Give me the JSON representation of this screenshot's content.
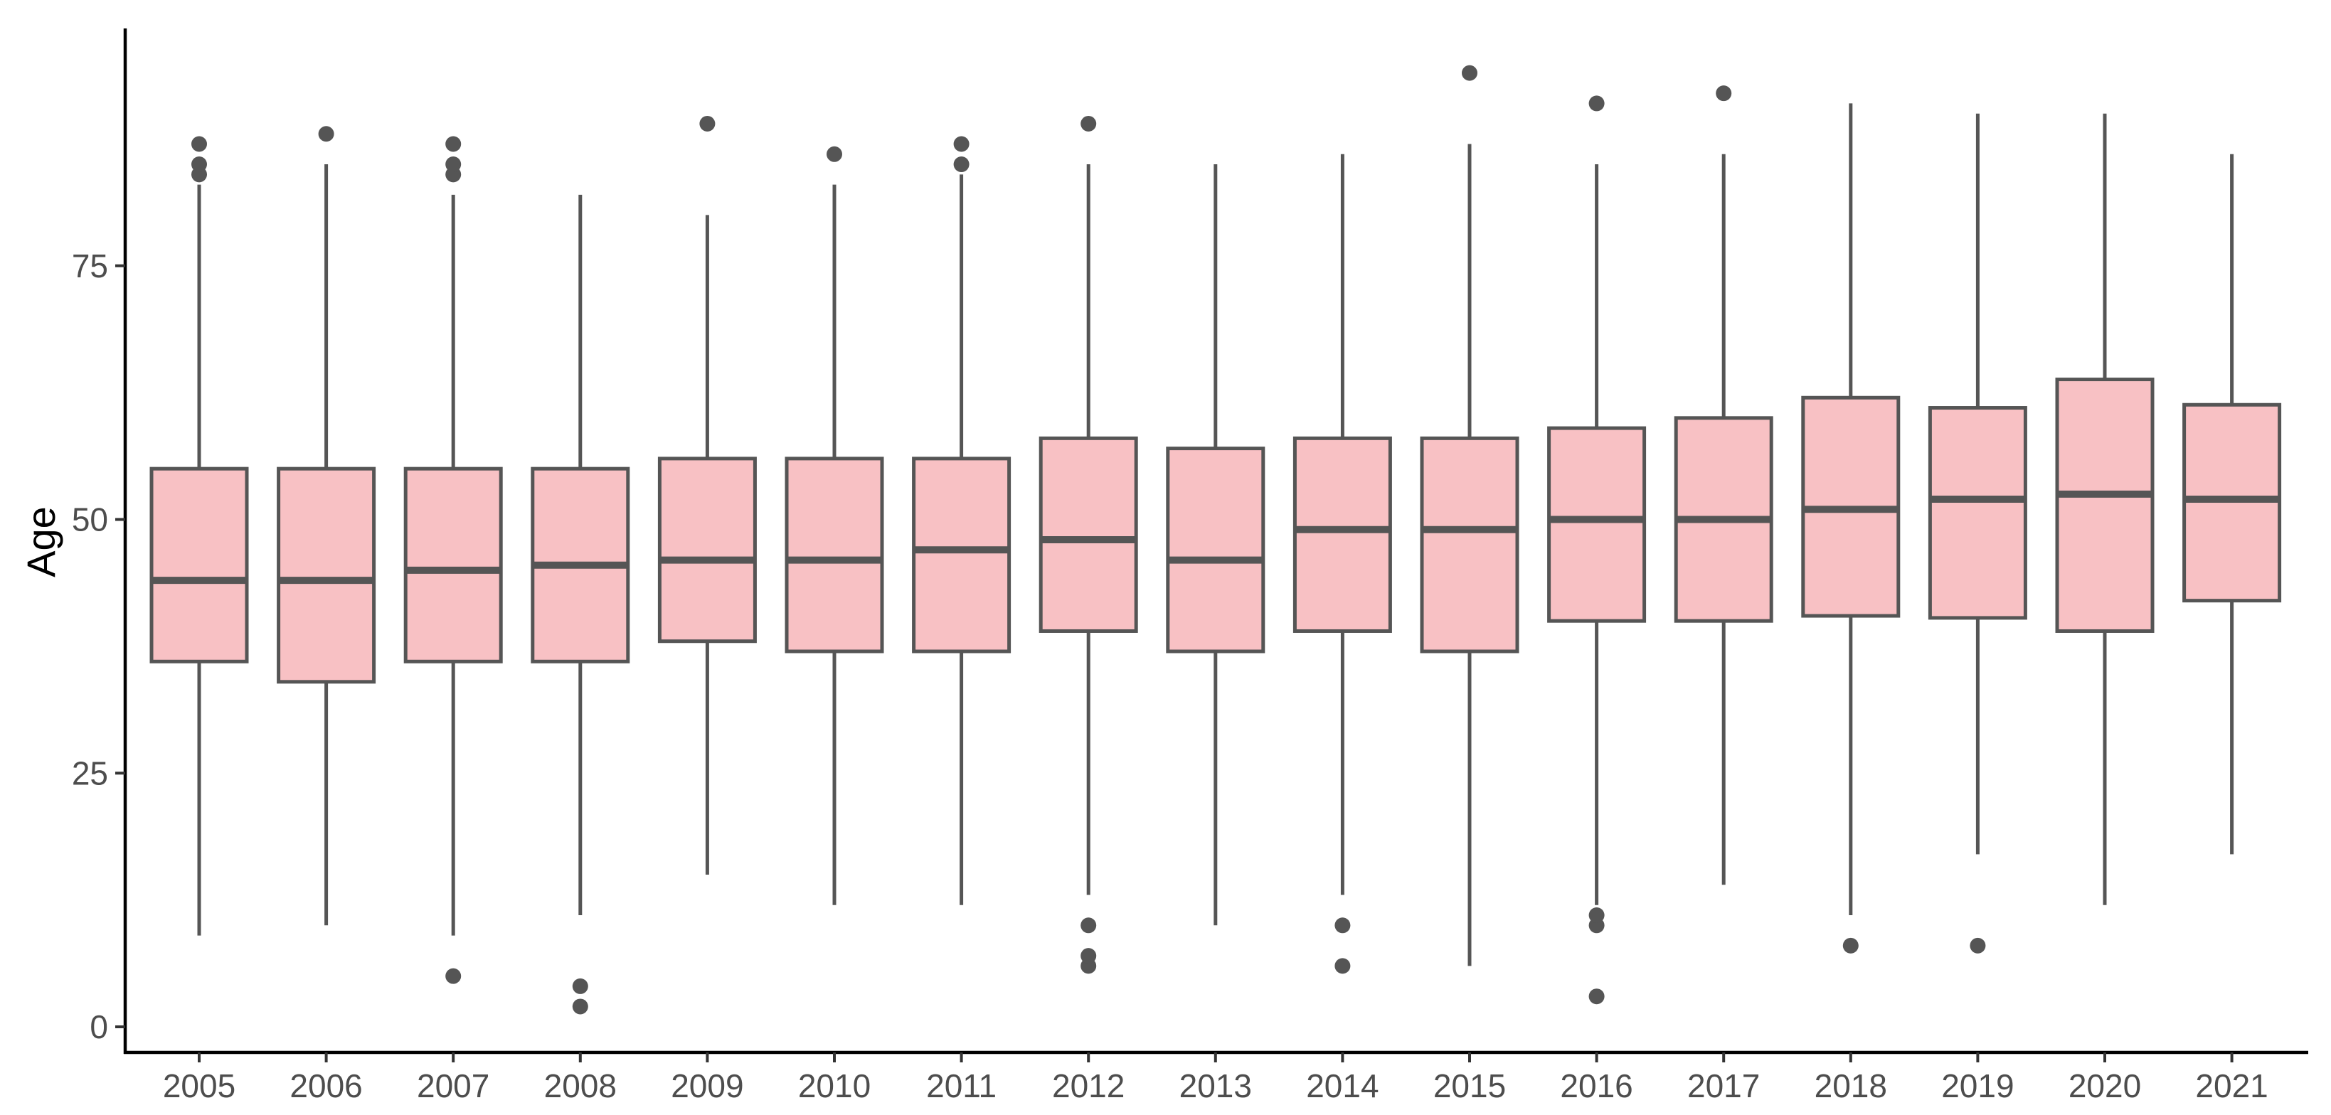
{
  "chart_data": {
    "type": "boxplot",
    "title": "",
    "xlabel": "",
    "ylabel": "Age",
    "ylim": [
      -2.5,
      99
    ],
    "y_ticks": [
      0,
      25,
      50,
      75
    ],
    "grid": false,
    "legend": "none",
    "box_fill": "#f8c1c4",
    "box_stroke": "#555555",
    "categories": [
      "2005",
      "2006",
      "2007",
      "2008",
      "2009",
      "2010",
      "2011",
      "2012",
      "2013",
      "2014",
      "2015",
      "2016",
      "2017",
      "2018",
      "2019",
      "2020",
      "2021"
    ],
    "boxes": [
      {
        "category": "2005",
        "whisker_low": 9,
        "q1": 36,
        "median": 44,
        "q3": 55,
        "whisker_high": 83,
        "outliers": [
          84,
          85,
          87
        ]
      },
      {
        "category": "2006",
        "whisker_low": 10,
        "q1": 34,
        "median": 44,
        "q3": 55,
        "whisker_high": 85,
        "outliers": [
          88
        ]
      },
      {
        "category": "2007",
        "whisker_low": 9,
        "q1": 36,
        "median": 45,
        "q3": 55,
        "whisker_high": 82,
        "outliers": [
          5,
          84,
          85,
          87
        ]
      },
      {
        "category": "2008",
        "whisker_low": 11,
        "q1": 36,
        "median": 45.5,
        "q3": 55,
        "whisker_high": 82,
        "outliers": [
          2,
          4
        ]
      },
      {
        "category": "2009",
        "whisker_low": 15,
        "q1": 38,
        "median": 46,
        "q3": 56,
        "whisker_high": 80,
        "outliers": [
          89
        ]
      },
      {
        "category": "2010",
        "whisker_low": 12,
        "q1": 37,
        "median": 46,
        "q3": 56,
        "whisker_high": 83,
        "outliers": [
          86
        ]
      },
      {
        "category": "2011",
        "whisker_low": 12,
        "q1": 37,
        "median": 47,
        "q3": 56,
        "whisker_high": 84,
        "outliers": [
          85,
          87
        ]
      },
      {
        "category": "2012",
        "whisker_low": 13,
        "q1": 39,
        "median": 48,
        "q3": 58,
        "whisker_high": 85,
        "outliers": [
          6,
          7,
          10,
          89
        ]
      },
      {
        "category": "2013",
        "whisker_low": 10,
        "q1": 37,
        "median": 46,
        "q3": 57,
        "whisker_high": 85,
        "outliers": []
      },
      {
        "category": "2014",
        "whisker_low": 13,
        "q1": 39,
        "median": 49,
        "q3": 58,
        "whisker_high": 86,
        "outliers": [
          6,
          10
        ]
      },
      {
        "category": "2015",
        "whisker_low": 6,
        "q1": 37,
        "median": 49,
        "q3": 58,
        "whisker_high": 87,
        "outliers": [
          94
        ]
      },
      {
        "category": "2016",
        "whisker_low": 12,
        "q1": 40,
        "median": 50,
        "q3": 59,
        "whisker_high": 85,
        "outliers": [
          3,
          10,
          11,
          91
        ]
      },
      {
        "category": "2017",
        "whisker_low": 14,
        "q1": 40,
        "median": 50,
        "q3": 60,
        "whisker_high": 86,
        "outliers": [
          92
        ]
      },
      {
        "category": "2018",
        "whisker_low": 11,
        "q1": 40.5,
        "median": 51,
        "q3": 62,
        "whisker_high": 91,
        "outliers": [
          8
        ]
      },
      {
        "category": "2019",
        "whisker_low": 17,
        "q1": 40.3,
        "median": 52,
        "q3": 61,
        "whisker_high": 90,
        "outliers": [
          8
        ]
      },
      {
        "category": "2020",
        "whisker_low": 12,
        "q1": 39,
        "median": 52.5,
        "q3": 63.8,
        "whisker_high": 90,
        "outliers": []
      },
      {
        "category": "2021",
        "whisker_low": 17,
        "q1": 42,
        "median": 52,
        "q3": 61.3,
        "whisker_high": 86,
        "outliers": []
      }
    ]
  }
}
